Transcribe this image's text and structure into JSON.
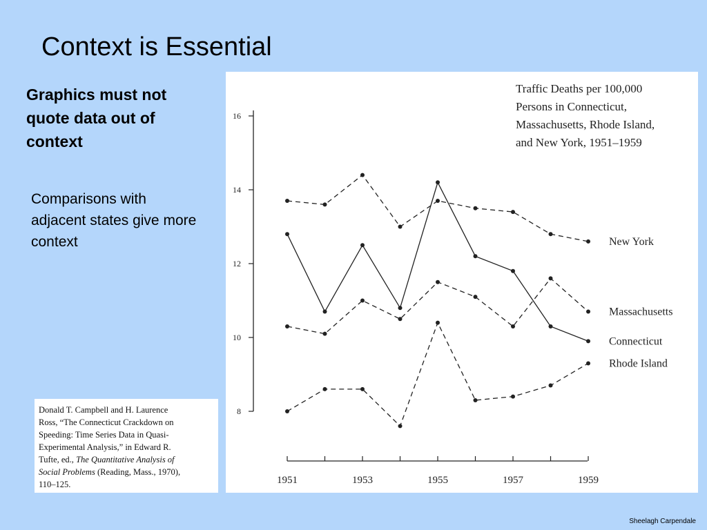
{
  "slide": {
    "title": "Context is Essential",
    "subheading": "Graphics must not quote data out of context",
    "bullet": "Comparisons with adjacent states give more context",
    "author": "Sheelagh Carpendale"
  },
  "citation": {
    "line1": "Donald T. Campbell and H. Laurence",
    "line2": "Ross, “The Connecticut Crackdown on",
    "line3": "Speeding: Time Series Data in Quasi-",
    "line4": "Experimental Analysis,” in Edward R.",
    "line5_prefix": "Tufte, ed., ",
    "line5_italic": "The Quantitative Analysis of",
    "line6_italic": "Social Problems",
    "line6_suffix": " (Reading, Mass., 1970),",
    "line7": "110–125."
  },
  "colors": {
    "background": "#b4d6fb",
    "panel": "#ffffff",
    "ink": "#222222"
  },
  "chart_data": {
    "type": "line",
    "title_lines": [
      "Traffic Deaths per 100,000",
      "Persons in Connecticut,",
      "Massachusetts, Rhode Island,",
      "and New York, 1951–1959"
    ],
    "x": [
      1951,
      1952,
      1953,
      1954,
      1955,
      1956,
      1957,
      1958,
      1959
    ],
    "x_tick_labels": [
      "1951",
      "1953",
      "1955",
      "1957",
      "1959"
    ],
    "y_tick_labels": [
      "16",
      "14",
      "12",
      "10",
      "8"
    ],
    "ylim": [
      8,
      16
    ],
    "grid": false,
    "series": [
      {
        "name": "New York",
        "style": "dashed",
        "values": [
          13.7,
          13.6,
          14.4,
          13.0,
          13.7,
          13.5,
          13.4,
          12.8,
          12.6
        ]
      },
      {
        "name": "Massachusetts",
        "style": "dashed",
        "values": [
          10.3,
          10.1,
          11.0,
          10.5,
          11.5,
          11.1,
          10.3,
          11.6,
          10.7
        ]
      },
      {
        "name": "Connecticut",
        "style": "solid",
        "values": [
          12.8,
          10.7,
          12.5,
          10.8,
          14.2,
          12.2,
          11.8,
          10.3,
          9.9
        ]
      },
      {
        "name": "Rhode Island",
        "style": "dashed",
        "values": [
          8.0,
          8.6,
          8.6,
          7.6,
          10.4,
          8.3,
          8.4,
          8.7,
          9.3
        ]
      }
    ]
  }
}
